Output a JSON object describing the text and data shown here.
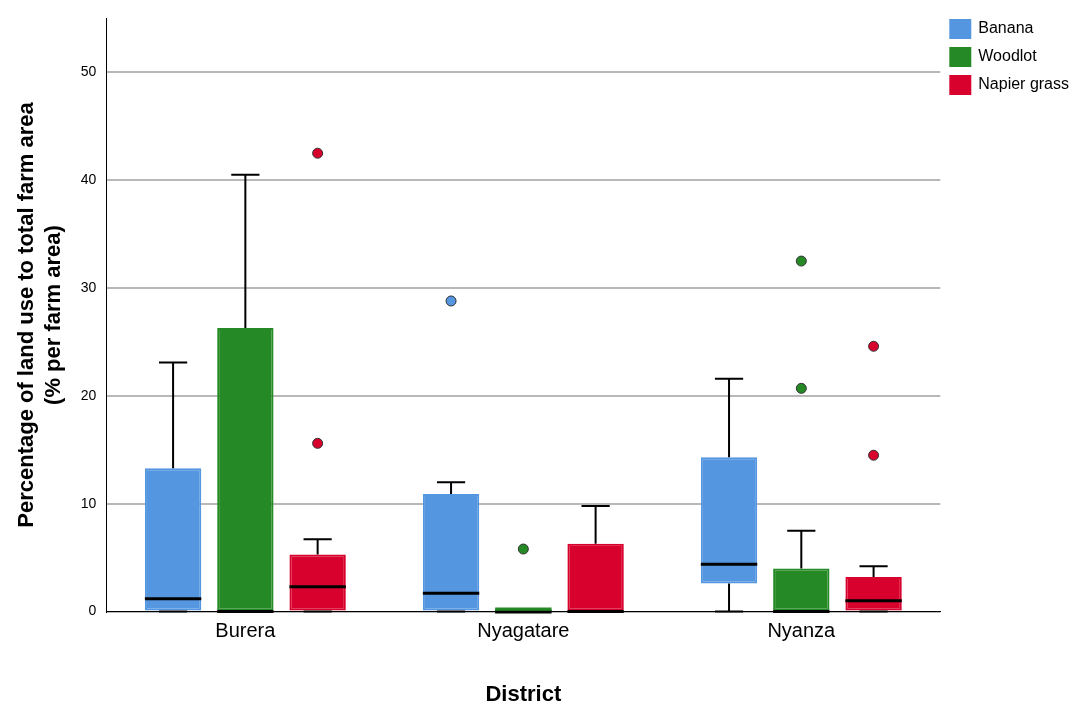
{
  "chart_data": {
    "type": "box",
    "xlabel": "District",
    "ylabel": "Percentage of land use to total farm area\n(% per farm area)",
    "categories": [
      "Burera",
      "Nyagatare",
      "Nyanza"
    ],
    "ylim": [
      0,
      55
    ],
    "yticks": [
      0,
      10,
      20,
      30,
      40,
      50
    ],
    "grid": "y",
    "legend": "top right",
    "series": [
      {
        "name": "Banana",
        "color": "#5596e0",
        "boxes": [
          {
            "low": 0,
            "q1": 0,
            "median": 1.2,
            "q3": 13.3,
            "high": 23.1
          },
          {
            "low": 0,
            "q1": 0,
            "median": 1.7,
            "q3": 10.9,
            "high": 12.0,
            "outliers": [
              28.8
            ]
          },
          {
            "low": 0,
            "q1": 2.6,
            "median": 4.4,
            "q3": 14.3,
            "high": 21.6
          }
        ]
      },
      {
        "name": "Woodlot",
        "color": "#258a25",
        "boxes": [
          {
            "low": 0,
            "q1": 0,
            "median": 0,
            "q3": 26.3,
            "high": 40.5
          },
          {
            "low": 0,
            "q1": 0,
            "median": 0,
            "q3": 0,
            "high": 0,
            "outliers": [
              5.8
            ]
          },
          {
            "low": 0,
            "q1": 0,
            "median": 0,
            "q3": 4.0,
            "high": 7.5,
            "outliers": [
              20.7,
              32.5
            ]
          }
        ]
      },
      {
        "name": "Napier grass",
        "color": "#d8002c",
        "boxes": [
          {
            "low": 0,
            "q1": 0,
            "median": 2.3,
            "q3": 5.3,
            "high": 6.7,
            "outliers": [
              15.6,
              42.5
            ]
          },
          {
            "low": 0,
            "q1": 0,
            "median": 0,
            "q3": 6.3,
            "high": 9.8
          },
          {
            "low": 0,
            "q1": 0,
            "median": 1.0,
            "q3": 3.2,
            "high": 4.2,
            "outliers": [
              14.5,
              24.6
            ]
          }
        ]
      }
    ]
  }
}
